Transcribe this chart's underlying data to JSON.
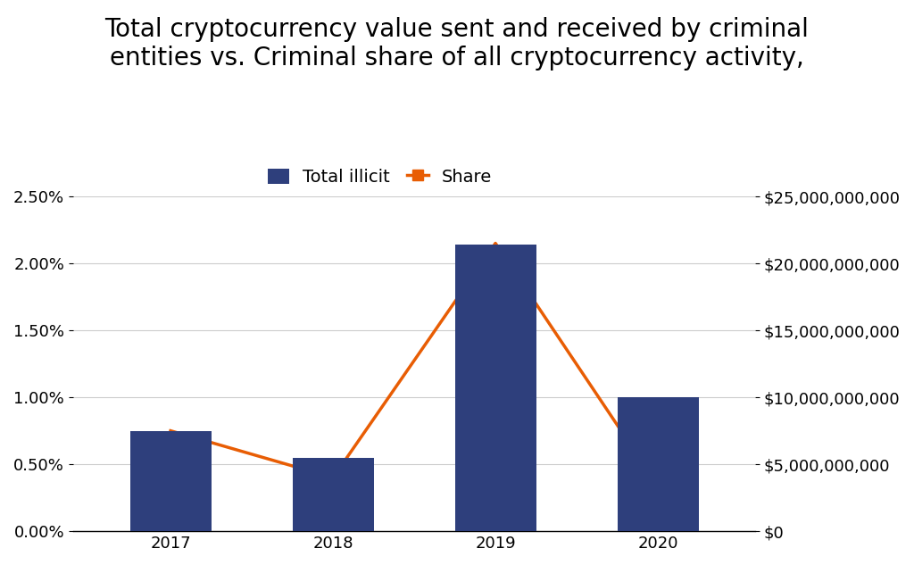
{
  "title": "Total cryptocurrency value sent and received by criminal\nentities vs. Criminal share of all cryptocurrency activity,",
  "years": [
    2017,
    2018,
    2019,
    2020
  ],
  "bar_values": [
    7500000000,
    5500000000,
    21400000000,
    10000000000
  ],
  "line_values": [
    0.0075,
    0.004,
    0.0215,
    0.0034
  ],
  "bar_color": "#2e3f7c",
  "line_color": "#e85d04",
  "legend_bar_label": "Total illicit",
  "legend_line_label": "Share",
  "left_ylim": [
    0,
    0.025
  ],
  "right_ylim": [
    0,
    25000000000
  ],
  "left_yticks": [
    0.0,
    0.005,
    0.01,
    0.015,
    0.02,
    0.025
  ],
  "right_yticks": [
    0,
    5000000000,
    10000000000,
    15000000000,
    20000000000,
    25000000000
  ],
  "background_color": "#ffffff",
  "grid_color": "#cccccc",
  "title_fontsize": 20,
  "tick_fontsize": 13,
  "legend_fontsize": 14,
  "bar_width": 0.5
}
